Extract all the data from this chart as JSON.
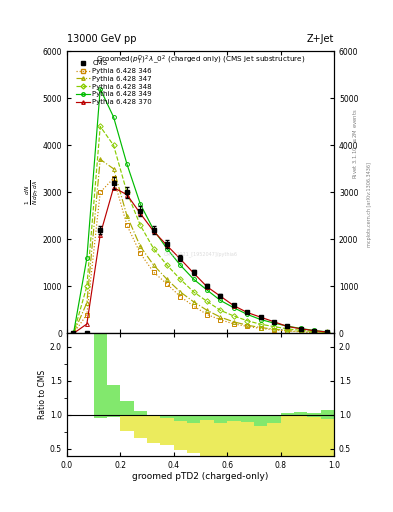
{
  "title_top": "13000 GeV pp",
  "title_right": "Z+Jet",
  "plot_title": "Groomed$(p_T^D)^2\\,\\lambda\\_0^2$ (charged only) (CMS jet substructure)",
  "xlabel": "groomed pTD2 (charged-only)",
  "ylabel_ratio": "Ratio to CMS",
  "right_label": "Rivet 3.1.10, $\\geq$2M events",
  "right_label2": "mcplots.cern.ch [arXiv:1306.3436]",
  "x_bins": [
    0.0,
    0.05,
    0.1,
    0.15,
    0.2,
    0.25,
    0.3,
    0.35,
    0.4,
    0.45,
    0.5,
    0.55,
    0.6,
    0.65,
    0.7,
    0.75,
    0.8,
    0.85,
    0.9,
    0.95,
    1.0
  ],
  "cms_data": [
    0,
    0,
    2200,
    3200,
    3000,
    2600,
    2200,
    1900,
    1600,
    1300,
    1000,
    800,
    600,
    450,
    350,
    250,
    150,
    100,
    60,
    30
  ],
  "py346_data": [
    0,
    400,
    3000,
    3300,
    2300,
    1700,
    1300,
    1050,
    780,
    580,
    400,
    290,
    200,
    150,
    105,
    78,
    52,
    32,
    18,
    10
  ],
  "py347_data": [
    0,
    650,
    3700,
    3500,
    2500,
    1850,
    1450,
    1150,
    880,
    670,
    490,
    345,
    245,
    175,
    125,
    90,
    60,
    38,
    22,
    12
  ],
  "py348_data": [
    0,
    1000,
    4400,
    4000,
    3000,
    2300,
    1800,
    1450,
    1150,
    880,
    680,
    490,
    370,
    270,
    195,
    145,
    97,
    65,
    38,
    20
  ],
  "py349_data": [
    0,
    1600,
    5200,
    4600,
    3600,
    2750,
    2200,
    1800,
    1450,
    1150,
    920,
    700,
    545,
    405,
    295,
    220,
    155,
    105,
    62,
    32
  ],
  "py370_data": [
    0,
    200,
    2100,
    3100,
    2950,
    2550,
    2170,
    1870,
    1580,
    1280,
    990,
    790,
    590,
    445,
    345,
    248,
    148,
    98,
    58,
    28
  ],
  "color_346": "#cc8800",
  "color_347": "#aaaa00",
  "color_348": "#88cc00",
  "color_349": "#00bb00",
  "color_370": "#bb0000",
  "color_cms": "#000000",
  "ylim_main": [
    0,
    6000
  ],
  "ylim_ratio": [
    0.4,
    2.2
  ],
  "background": "#ffffff"
}
